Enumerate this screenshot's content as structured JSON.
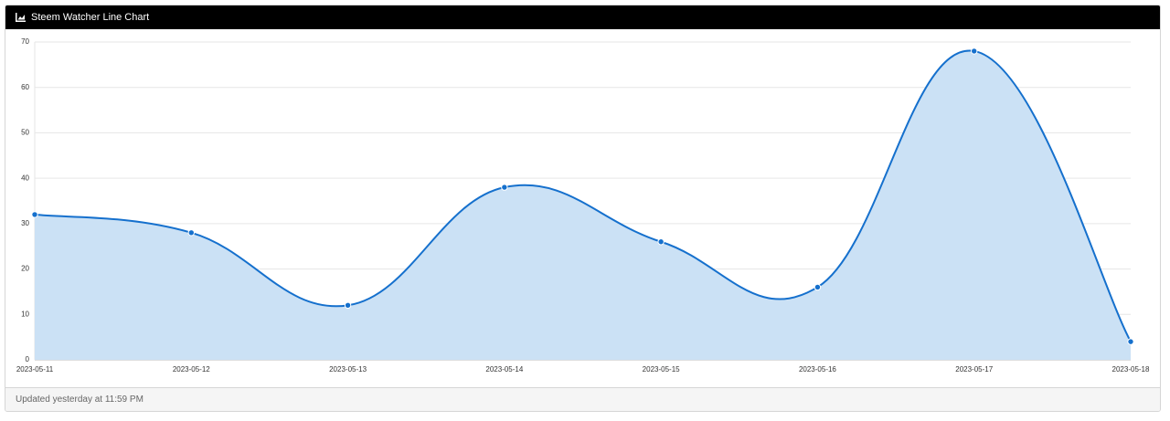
{
  "header": {
    "title": "Steem Watcher Line Chart"
  },
  "footer": {
    "text": "Updated yesterday at 11:59 PM"
  },
  "chart_data": {
    "type": "line",
    "fill": true,
    "x": [
      "2023-05-11",
      "2023-05-12",
      "2023-05-13",
      "2023-05-14",
      "2023-05-15",
      "2023-05-16",
      "2023-05-17",
      "2023-05-18"
    ],
    "values": [
      32,
      28,
      12,
      38,
      26,
      16,
      68,
      4
    ],
    "color": "#1570cd",
    "fill_color": "#cbe1f5",
    "ylim": [
      0,
      70
    ],
    "yticks": [
      0,
      10,
      20,
      30,
      40,
      50,
      60,
      70
    ],
    "grid": true
  }
}
